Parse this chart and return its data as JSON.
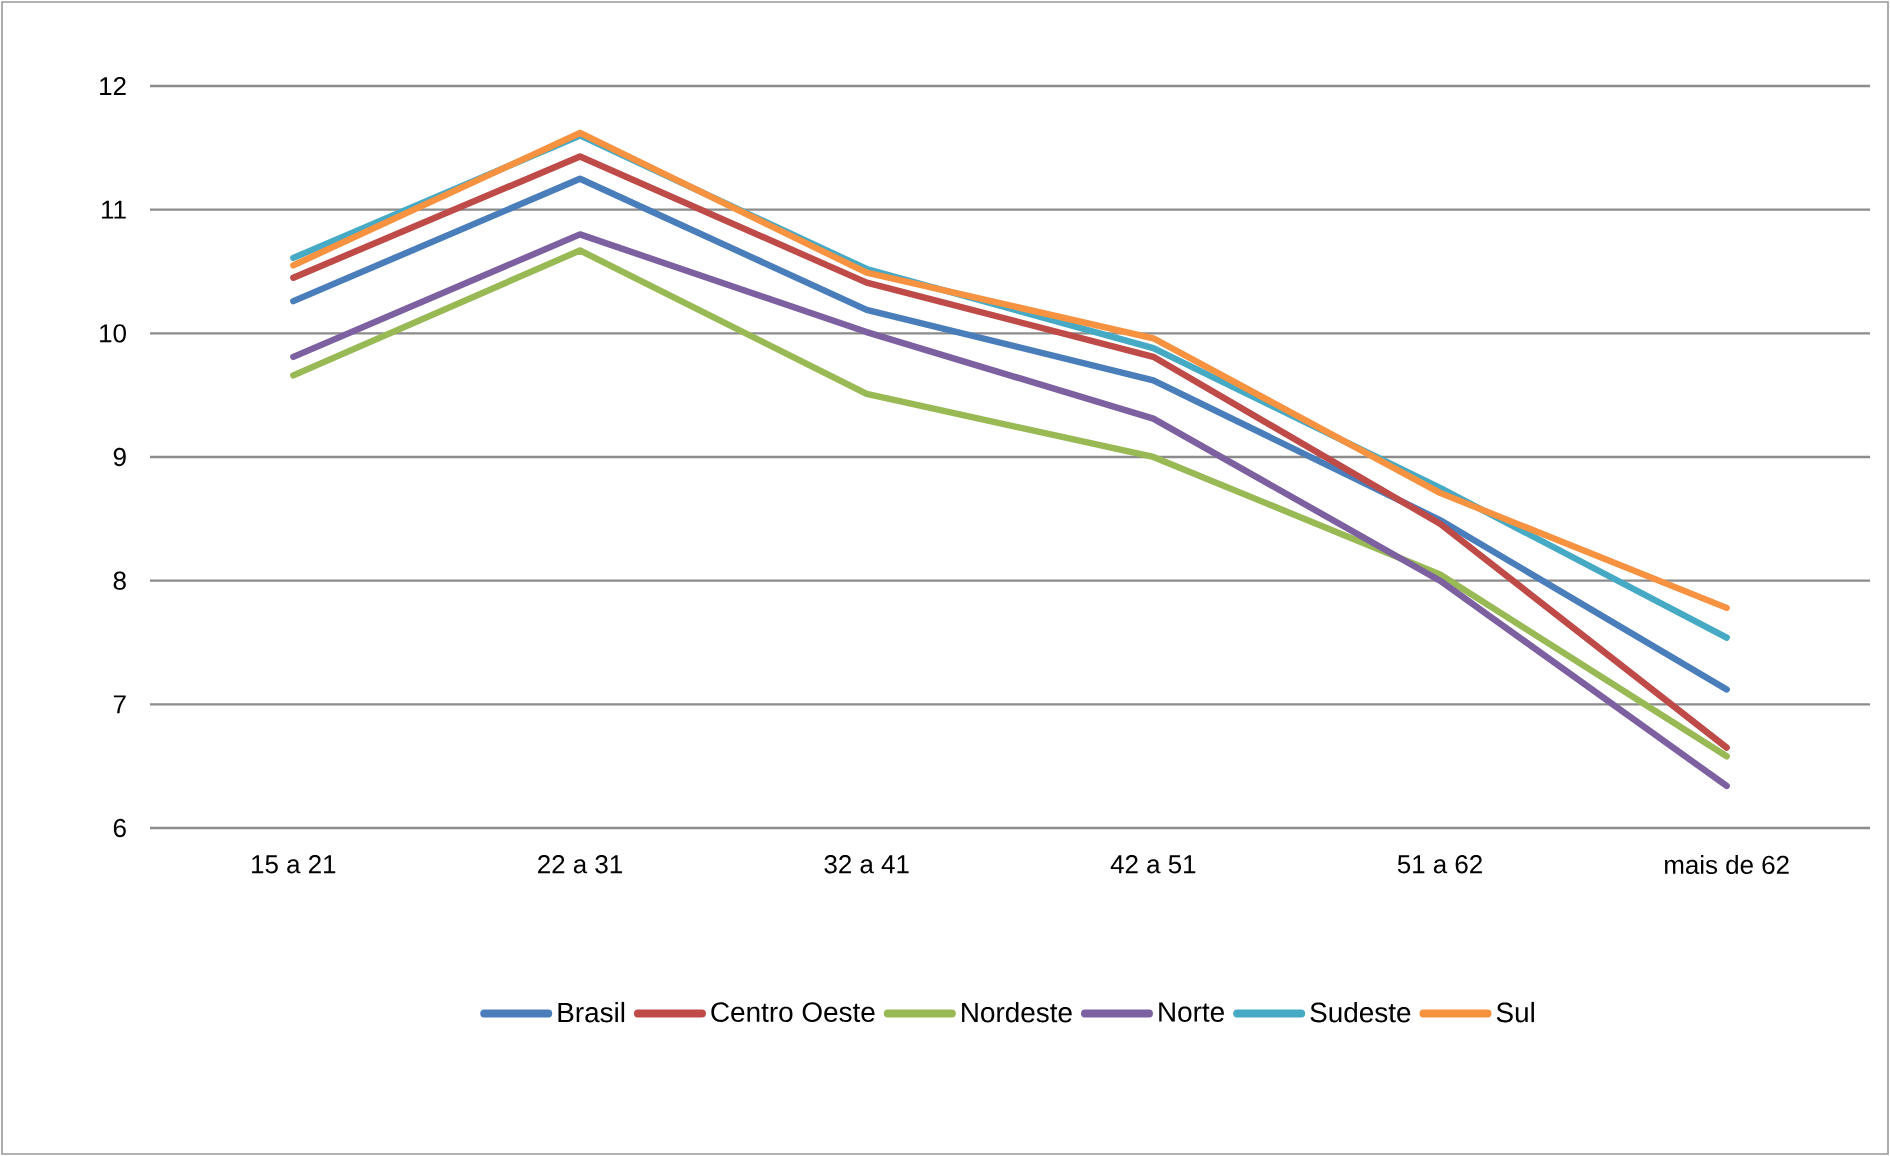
{
  "chart_data": {
    "type": "line",
    "categories": [
      "15 a 21",
      "22 a 31",
      "32 a 41",
      "42 a 51",
      "51 a 62",
      "mais de 62"
    ],
    "series": [
      {
        "name": "Brasil",
        "color": "#4a7ebb",
        "values": [
          10.26,
          11.25,
          10.19,
          9.62,
          8.49,
          7.12
        ]
      },
      {
        "name": "Centro Oeste",
        "color": "#be4b48",
        "values": [
          10.45,
          11.43,
          10.41,
          9.81,
          8.46,
          6.65
        ]
      },
      {
        "name": "Nordeste",
        "color": "#98b954",
        "values": [
          9.66,
          10.67,
          9.51,
          9.0,
          8.05,
          6.58
        ]
      },
      {
        "name": "Norte",
        "color": "#7d60a0",
        "values": [
          9.81,
          10.8,
          10.01,
          9.31,
          8.0,
          6.34
        ]
      },
      {
        "name": "Sudeste",
        "color": "#46aac5",
        "values": [
          10.61,
          11.6,
          10.52,
          9.88,
          8.75,
          7.54
        ]
      },
      {
        "name": "Sul",
        "color": "#f69240",
        "values": [
          10.55,
          11.62,
          10.49,
          9.96,
          8.71,
          7.78
        ]
      }
    ],
    "ylim": [
      6,
      12
    ],
    "yticks": [
      6,
      7,
      8,
      9,
      10,
      11,
      12
    ],
    "grid": "y",
    "legend": "bottom",
    "marker": "none",
    "line_style": "solid"
  }
}
